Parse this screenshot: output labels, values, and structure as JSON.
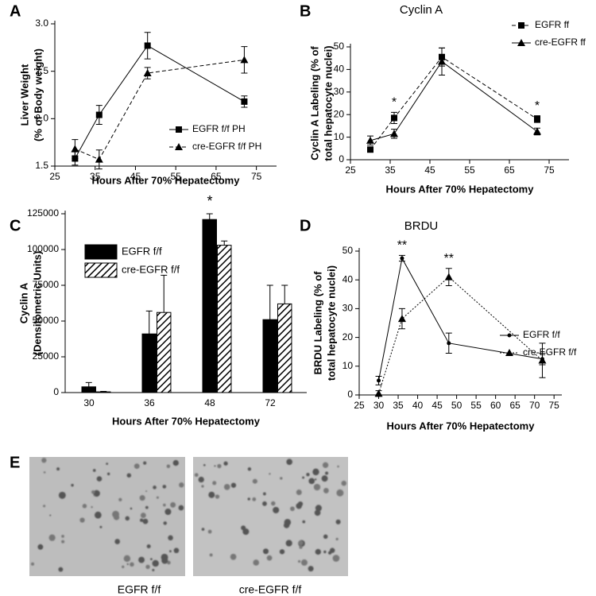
{
  "chart_data": [
    {
      "type": "line",
      "panel_label": "A",
      "xlabel": "Hours After 70% Hepatectomy",
      "ylabel": [
        "Liver Weight",
        "(% of Body weight)"
      ],
      "x": [
        30,
        36,
        48,
        72
      ],
      "series": [
        {
          "name": "EGFR f/f PH",
          "color": "#000000",
          "line_style": "solid",
          "marker": "square",
          "values": [
            1.58,
            2.04,
            2.77,
            2.18
          ],
          "errors": [
            0.07,
            0.1,
            0.14,
            0.06
          ]
        },
        {
          "name": "cre-EGFR f/f PH",
          "color": "#000000",
          "line_style": "dashed",
          "marker": "triangle",
          "values": [
            1.68,
            1.57,
            2.48,
            2.62
          ],
          "errors": [
            0.1,
            0.1,
            0.06,
            0.14
          ]
        }
      ],
      "xlim": [
        25,
        80
      ],
      "xticks": [
        25,
        35,
        45,
        55,
        65,
        75
      ],
      "ylim": [
        1.5,
        3.0
      ],
      "yticks": [
        {
          "value": 1.5,
          "label": "1.5"
        },
        {
          "value": 2.0,
          "label": "2.0"
        },
        {
          "value": 2.5,
          "label": "2.5"
        },
        {
          "value": 3.0,
          "label": "3.0"
        }
      ],
      "legend": "lower right"
    },
    {
      "type": "line",
      "panel_label": "B",
      "title": "Cyclin A",
      "xlabel": "Hours After 70% Hepatectomy",
      "ylabel": [
        "Cyclin A Labeling (% of",
        "total hepatocyte nuclei)"
      ],
      "x": [
        30,
        36,
        48,
        72
      ],
      "series": [
        {
          "name": "EGFR ff",
          "color": "#000000",
          "line_style": "dashed",
          "marker": "square",
          "values": [
            4.5,
            18.5,
            45.5,
            18
          ],
          "errors": [
            0.5,
            2.5,
            4,
            1.5
          ]
        },
        {
          "name": "cre-EGFR ff",
          "color": "#000000",
          "line_style": "solid",
          "marker": "triangle",
          "values": [
            8.5,
            11.5,
            43.5,
            12.5
          ],
          "errors": [
            2,
            2,
            6,
            1.5
          ]
        }
      ],
      "annotations": [
        {
          "text": "*",
          "x": 36
        },
        {
          "text": "*",
          "x": 72
        }
      ],
      "xlim": [
        25,
        80
      ],
      "xticks": [
        25,
        35,
        45,
        55,
        65,
        75
      ],
      "ylim": [
        0,
        50
      ],
      "yticks": [
        0,
        10,
        20,
        30,
        40,
        50
      ],
      "legend": "upper right"
    },
    {
      "type": "bar",
      "panel_label": "C",
      "xlabel": "Hours After 70% Hepatectomy",
      "ylabel": [
        "Cyclin A",
        "(Densitometric Units)"
      ],
      "categories": [
        "30",
        "36",
        "48",
        "72"
      ],
      "series": [
        {
          "name": "EGFR f/f",
          "color": "#000000",
          "pattern": "solid",
          "values": [
            4000,
            41000,
            121000,
            51000
          ],
          "errors": [
            3000,
            16000,
            4000,
            24000
          ]
        },
        {
          "name": "cre-EGFR f/f",
          "color": "#000000",
          "pattern": "hatch",
          "values": [
            500,
            56000,
            103000,
            62000
          ],
          "errors": [
            300,
            26000,
            3000,
            13000
          ]
        }
      ],
      "annotations": [
        {
          "text": "*",
          "x": "48"
        }
      ],
      "ylim": [
        0,
        125000
      ],
      "yticks": [
        0,
        25000,
        50000,
        75000,
        100000,
        125000
      ],
      "legend": "upper left"
    },
    {
      "type": "line",
      "panel_label": "D",
      "title": "BRDU",
      "xlabel": "Hours After 70% Hepatectomy",
      "ylabel": [
        "BRDU Labeling (% of",
        "total hepatocyte nuclei)"
      ],
      "x": [
        30,
        36,
        48,
        72
      ],
      "series": [
        {
          "name": "EGFR f/f",
          "color": "#000000",
          "line_style": "solid",
          "marker": "dot",
          "values": [
            5,
            47.5,
            18,
            12.5
          ],
          "errors": [
            1.5,
            1,
            3.5,
            2
          ]
        },
        {
          "name": "cre-EGFR f/f",
          "color": "#000000",
          "line_style": "dotted",
          "marker": "triangle",
          "values": [
            0.5,
            26.5,
            41,
            12
          ],
          "errors": [
            1,
            3.5,
            3,
            6
          ]
        }
      ],
      "annotations": [
        {
          "text": "**",
          "x": 36
        },
        {
          "text": "**",
          "x": 48
        }
      ],
      "xlim": [
        25,
        77
      ],
      "xticks": [
        25,
        30,
        35,
        40,
        45,
        50,
        55,
        60,
        65,
        70,
        75
      ],
      "ylim": [
        0,
        50
      ],
      "yticks": [
        0,
        10,
        20,
        30,
        40,
        50
      ],
      "legend": "center right"
    }
  ],
  "images": {
    "panel_label": "E",
    "captions": [
      "EGFR f/f",
      "cre-EGFR f/f"
    ]
  }
}
